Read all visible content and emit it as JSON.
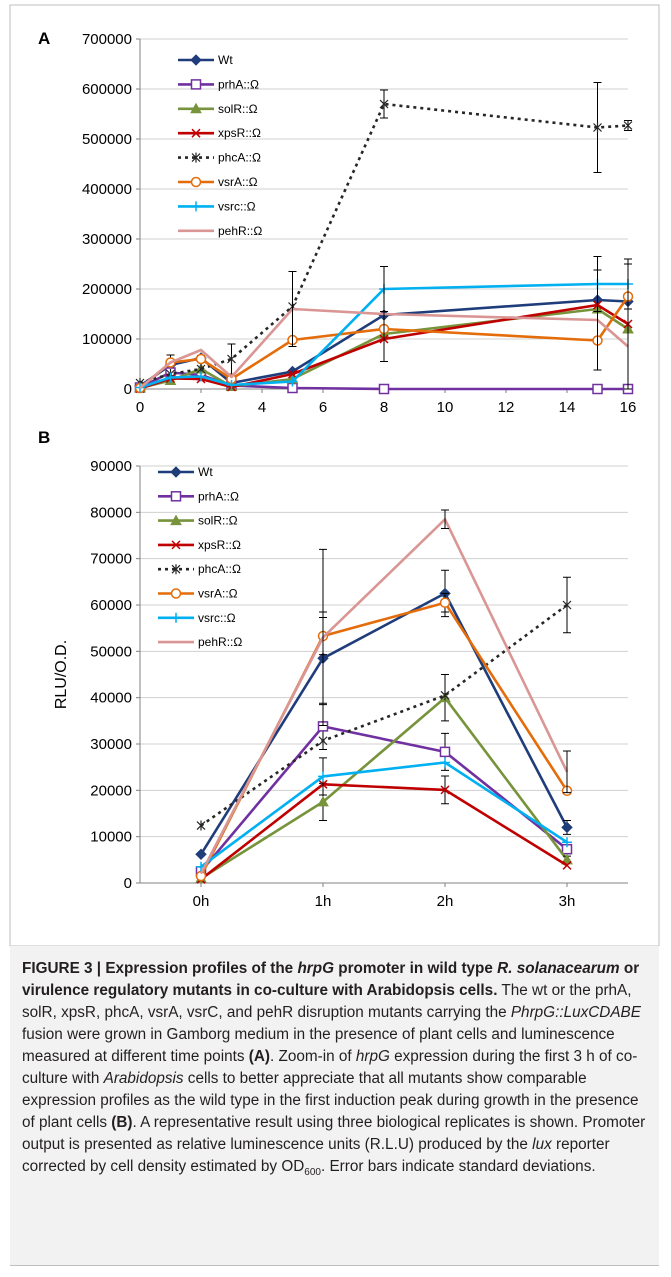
{
  "chart_data": [
    {
      "type": "line",
      "panel_label": "A",
      "ylabel": "",
      "x": [
        0,
        1,
        2,
        3,
        5,
        8,
        15,
        16
      ],
      "xticks": [
        0,
        2,
        4,
        6,
        8,
        10,
        12,
        14,
        16
      ],
      "xlim": [
        0,
        16
      ],
      "ylim": [
        0,
        700000
      ],
      "yticks": [
        0,
        100000,
        200000,
        300000,
        400000,
        500000,
        600000,
        700000
      ],
      "yticklabels": [
        "0",
        "100000",
        "200000",
        "300000",
        "400000",
        "500000",
        "600000",
        "700000"
      ],
      "grid": "horizontal",
      "legend_position": "top-left",
      "series": [
        {
          "name": "Wt",
          "color": "#1f3d7a",
          "marker": "diamond",
          "dash": "",
          "values": [
            6000,
            48000,
            62000,
            12000,
            35000,
            148000,
            178000,
            175000
          ],
          "errors": [
            0,
            20000,
            5000,
            0,
            0,
            0,
            0,
            0
          ]
        },
        {
          "name": "prhA::Ω",
          "color": "#7030a0",
          "marker": "square-open",
          "dash": "",
          "values": [
            3000,
            33000,
            28000,
            7000,
            2000,
            0,
            0,
            0
          ],
          "errors": [
            0,
            0,
            0,
            0,
            0,
            0,
            0,
            0
          ]
        },
        {
          "name": "solR::Ω",
          "color": "#77933c",
          "marker": "triangle",
          "dash": "",
          "values": [
            2000,
            17000,
            40000,
            5000,
            20000,
            110000,
            160000,
            120000
          ],
          "errors": [
            0,
            0,
            0,
            0,
            0,
            0,
            0,
            0
          ]
        },
        {
          "name": "xpsR::Ω",
          "color": "#c00000",
          "marker": "x",
          "dash": "",
          "values": [
            1000,
            21000,
            20000,
            4000,
            30000,
            100000,
            168000,
            130000
          ],
          "errors": [
            0,
            0,
            0,
            0,
            0,
            0,
            0,
            0
          ]
        },
        {
          "name": "phcA::Ω",
          "color": "#262626",
          "marker": "asterisk",
          "dash": "3,4",
          "values": [
            12000,
            30000,
            40000,
            60000,
            165000,
            570000,
            523000,
            527000
          ],
          "errors": [
            0,
            0,
            0,
            30000,
            70000,
            28000,
            90000,
            10000
          ]
        },
        {
          "name": "vsrA::Ω",
          "color": "#e46c0a",
          "marker": "circle-open",
          "dash": "",
          "values": [
            2000,
            53000,
            60000,
            20000,
            98000,
            120000,
            97000,
            185000
          ],
          "errors": [
            0,
            0,
            0,
            0,
            0,
            0,
            0,
            0
          ]
        },
        {
          "name": "vsrc::Ω",
          "color": "#00b0f0",
          "marker": "plus",
          "dash": "",
          "values": [
            3000,
            23000,
            25000,
            8000,
            15000,
            200000,
            210000,
            210000
          ],
          "errors": [
            0,
            0,
            0,
            0,
            0,
            45000,
            55000,
            50000
          ]
        },
        {
          "name": "pehR::Ω",
          "color": "#d99694",
          "marker": "none",
          "dash": "",
          "values": [
            2000,
            53000,
            78000,
            24000,
            160000,
            150000,
            138000,
            85000
          ],
          "errors": [
            0,
            0,
            0,
            0,
            75000,
            95000,
            100000,
            165000
          ]
        }
      ]
    },
    {
      "type": "line",
      "panel_label": "B",
      "ylabel": "RLU/O.D.",
      "categories": [
        "0h",
        "1h",
        "2h",
        "3h"
      ],
      "ylim": [
        0,
        90000
      ],
      "yticks": [
        0,
        10000,
        20000,
        30000,
        40000,
        50000,
        60000,
        70000,
        80000,
        90000
      ],
      "yticklabels": [
        "0",
        "10000",
        "20000",
        "30000",
        "40000",
        "50000",
        "60000",
        "70000",
        "80000",
        "90000"
      ],
      "grid": "horizontal",
      "legend_position": "top-left",
      "series": [
        {
          "name": "Wt",
          "color": "#1f3d7a",
          "marker": "diamond",
          "dash": "",
          "values": [
            6200,
            48500,
            62500,
            12000
          ],
          "errors": [
            0,
            10000,
            5000,
            1500
          ]
        },
        {
          "name": "prhA::Ω",
          "color": "#7030a0",
          "marker": "square-open",
          "dash": "",
          "values": [
            2500,
            33800,
            28300,
            7300
          ],
          "errors": [
            0,
            5000,
            4000,
            1000
          ]
        },
        {
          "name": "solR::Ω",
          "color": "#77933c",
          "marker": "triangle",
          "dash": "",
          "values": [
            1000,
            17500,
            40000,
            5000
          ],
          "errors": [
            0,
            4000,
            5000,
            800
          ]
        },
        {
          "name": "xpsR::Ω",
          "color": "#c00000",
          "marker": "x",
          "dash": "",
          "values": [
            800,
            21300,
            20100,
            3800
          ],
          "errors": [
            0,
            0,
            3000,
            0
          ]
        },
        {
          "name": "phcA::Ω",
          "color": "#262626",
          "marker": "asterisk",
          "dash": "3,4",
          "values": [
            12400,
            30700,
            40500,
            60000
          ],
          "errors": [
            0,
            0,
            0,
            6000
          ]
        },
        {
          "name": "vsrA::Ω",
          "color": "#e46c0a",
          "marker": "circle-open",
          "dash": "",
          "values": [
            1500,
            53300,
            60500,
            19900
          ],
          "errors": [
            0,
            4000,
            2000,
            0
          ]
        },
        {
          "name": "vsrc::Ω",
          "color": "#00b0f0",
          "marker": "plus",
          "dash": "",
          "values": [
            3500,
            23000,
            26000,
            8800
          ],
          "errors": [
            0,
            4000,
            0,
            0
          ]
        },
        {
          "name": "pehR::Ω",
          "color": "#d99694",
          "marker": "none",
          "dash": "",
          "values": [
            2000,
            53000,
            78500,
            24000
          ],
          "errors": [
            0,
            19000,
            2000,
            4500
          ]
        }
      ]
    }
  ],
  "caption": {
    "figure_label": "FIGURE 3 | Expression profiles of the ",
    "gene": "hrpG",
    "title_mid": " promoter in wild type ",
    "species": "R. solanacearum",
    "title_end": " or virulence regulatory mutants in co-culture with Arabidopsis cells.",
    "text1": " The wt or the prhA, solR, xpsR, phcA, vsrA, vsrC, and pehR disruption mutants carrying the ",
    "fusion": "PhrpG::LuxCDABE",
    "text2": " fusion were grown in Gamborg medium in the presence of plant cells and luminescence measured at different time points ",
    "ref_a": "(A)",
    "text3": ". Zoom-in of ",
    "gene2": "hrpG",
    "text4": " expression during the first 3 h of co-culture with ",
    "plant": "Arabidopsis",
    "text5": " cells to better appreciate that all mutants show comparable expression profiles as the wild type in the first induction peak during growth in the presence of plant cells ",
    "ref_b": "(B)",
    "text6": ". A representative result using three biological replicates is shown. Promoter output is presented as relative luminescence units (R.L.U) produced by the ",
    "lux": "lux",
    "text7": " reporter corrected by cell density estimated by OD",
    "od_sub": "600",
    "text8": ". Error bars indicate standard deviations."
  }
}
